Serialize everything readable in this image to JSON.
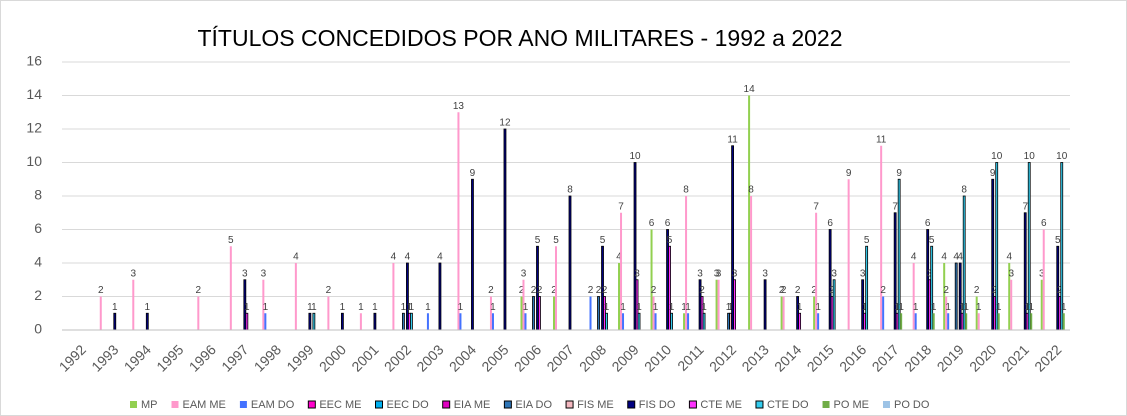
{
  "chart_data": {
    "type": "bar",
    "title": "TÍTULOS CONCEDIDOS POR ANO MILITARES - 1992 a 2022",
    "categories": [
      "1992",
      "1993",
      "1994",
      "1995",
      "1996",
      "1997",
      "1998",
      "1999",
      "2000",
      "2001",
      "2002",
      "2003",
      "2004",
      "2005",
      "2006",
      "2007",
      "2008",
      "2009",
      "2010",
      "2011",
      "2012",
      "2013",
      "2014",
      "2015",
      "2016",
      "2017",
      "2018",
      "2019",
      "2020",
      "2021",
      "2022"
    ],
    "ylim": [
      0,
      16
    ],
    "yticks": [
      0,
      2,
      4,
      6,
      8,
      10,
      12,
      14,
      16
    ],
    "grid": true,
    "legend": "bottom",
    "series": [
      {
        "name": "MP",
        "color": "#92d050",
        "values": [
          0,
          0,
          0,
          0,
          0,
          0,
          0,
          0,
          0,
          0,
          0,
          0,
          0,
          0,
          2,
          2,
          0,
          4,
          6,
          1,
          3,
          14,
          2,
          2,
          0,
          0,
          0,
          4,
          2,
          4,
          3
        ]
      },
      {
        "name": "EAM ME",
        "color": "#ff99cc",
        "values": [
          0,
          2,
          3,
          0,
          2,
          5,
          3,
          4,
          2,
          1,
          4,
          0,
          13,
          2,
          3,
          5,
          0,
          7,
          2,
          8,
          3,
          8,
          2,
          7,
          9,
          11,
          4,
          2,
          1,
          3,
          6
        ]
      },
      {
        "name": "EAM DO",
        "color": "#4472ff",
        "values": [
          0,
          0,
          0,
          0,
          0,
          0,
          1,
          0,
          0,
          0,
          0,
          1,
          1,
          1,
          1,
          0,
          2,
          1,
          1,
          1,
          0,
          0,
          0,
          1,
          0,
          2,
          1,
          1,
          0,
          0,
          0
        ]
      },
      {
        "name": "EEC ME",
        "color": "#ff00cc",
        "values": [
          0,
          0,
          0,
          0,
          0,
          0,
          0,
          0,
          0,
          0,
          0,
          0,
          0,
          0,
          0,
          0,
          0,
          0,
          0,
          0,
          0,
          0,
          0,
          0,
          0,
          0,
          0,
          0,
          0,
          0,
          0
        ]
      },
      {
        "name": "EEC DO",
        "color": "#00b0f0",
        "values": [
          0,
          0,
          0,
          0,
          0,
          0,
          0,
          0,
          0,
          0,
          0,
          0,
          0,
          0,
          0,
          0,
          0,
          0,
          0,
          0,
          0,
          0,
          0,
          0,
          0,
          0,
          0,
          0,
          0,
          0,
          0
        ]
      },
      {
        "name": "EIA ME",
        "color": "#e000c0",
        "values": [
          0,
          0,
          0,
          0,
          0,
          0,
          0,
          0,
          0,
          0,
          0,
          0,
          0,
          0,
          0,
          0,
          0,
          0,
          0,
          0,
          0,
          0,
          0,
          0,
          0,
          0,
          0,
          0,
          0,
          0,
          0
        ]
      },
      {
        "name": "EIA DO",
        "color": "#2e75b6",
        "values": [
          0,
          0,
          0,
          0,
          0,
          0,
          0,
          0,
          0,
          0,
          1,
          0,
          0,
          0,
          2,
          0,
          2,
          0,
          0,
          0,
          1,
          0,
          0,
          0,
          0,
          0,
          0,
          4,
          0,
          0,
          0
        ]
      },
      {
        "name": "FIS ME",
        "color": "#f4b8c0",
        "values": [
          0,
          0,
          0,
          0,
          0,
          0,
          0,
          0,
          0,
          0,
          0,
          0,
          0,
          0,
          0,
          0,
          0,
          0,
          0,
          0,
          1,
          0,
          0,
          0,
          0,
          0,
          0,
          0,
          0,
          0,
          0
        ]
      },
      {
        "name": "FIS DO",
        "color": "#000080",
        "values": [
          0,
          1,
          1,
          0,
          0,
          3,
          0,
          1,
          1,
          1,
          4,
          4,
          9,
          12,
          5,
          8,
          5,
          10,
          6,
          3,
          11,
          3,
          2,
          6,
          3,
          7,
          6,
          4,
          9,
          7,
          5
        ]
      },
      {
        "name": "CTE ME",
        "color": "#ff33ff",
        "values": [
          0,
          0,
          0,
          0,
          0,
          1,
          0,
          0,
          0,
          0,
          1,
          0,
          0,
          0,
          2,
          0,
          2,
          3,
          5,
          2,
          3,
          0,
          1,
          2,
          1,
          1,
          3,
          1,
          2,
          1,
          2
        ]
      },
      {
        "name": "CTE DO",
        "color": "#33ccee",
        "values": [
          0,
          0,
          0,
          0,
          0,
          0,
          0,
          1,
          0,
          0,
          1,
          0,
          0,
          0,
          0,
          0,
          1,
          1,
          1,
          1,
          0,
          0,
          0,
          3,
          5,
          9,
          5,
          8,
          10,
          10,
          10
        ]
      },
      {
        "name": "PO ME",
        "color": "#70ad47",
        "values": [
          0,
          0,
          0,
          0,
          0,
          0,
          0,
          0,
          0,
          0,
          0,
          0,
          0,
          0,
          0,
          0,
          0,
          0,
          0,
          0,
          0,
          0,
          0,
          0,
          0,
          1,
          1,
          1,
          1,
          1,
          1
        ]
      },
      {
        "name": "PO DO",
        "color": "#9dc3e6",
        "values": [
          0,
          0,
          0,
          0,
          0,
          0,
          0,
          0,
          0,
          0,
          0,
          0,
          0,
          0,
          0,
          0,
          0,
          0,
          0,
          0,
          0,
          0,
          0,
          0,
          0,
          0,
          0,
          0,
          0,
          0,
          0
        ]
      }
    ]
  }
}
